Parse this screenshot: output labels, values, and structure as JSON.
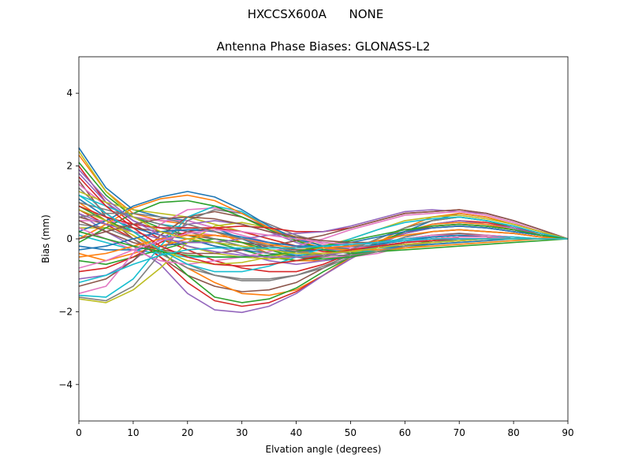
{
  "figure": {
    "suptitle": "HXCCSX600A      NONE"
  },
  "chart_data": {
    "type": "line",
    "title": "Antenna Phase Biases: GLONASS-L2",
    "xlabel": "Elvation angle (degrees)",
    "ylabel": "Bias (mm)",
    "xlim": [
      0,
      90
    ],
    "ylim": [
      -5,
      5
    ],
    "xticks": [
      0,
      10,
      20,
      30,
      40,
      50,
      60,
      70,
      80,
      90
    ],
    "yticks": [
      -4,
      -2,
      0,
      2,
      4
    ],
    "ytick_labels": [
      "−4",
      "−2",
      "0",
      "2",
      "4"
    ],
    "grid": false,
    "legend": "none",
    "x": [
      0,
      5,
      10,
      15,
      20,
      25,
      30,
      35,
      40,
      45,
      50,
      55,
      60,
      65,
      70,
      75,
      80,
      85,
      90
    ],
    "colors": [
      "#1f77b4",
      "#ff7f0e",
      "#2ca02c",
      "#d62728",
      "#9467bd",
      "#8c564b",
      "#e377c2",
      "#7f7f7f",
      "#bcbd22",
      "#17becf"
    ],
    "series": [
      {
        "values": [
          2.5,
          1.4,
          0.8,
          0.6,
          0.5,
          0.3,
          0.0,
          -0.3,
          -0.5,
          -0.6,
          -0.5,
          -0.2,
          0.2,
          0.5,
          0.7,
          0.6,
          0.4,
          0.2,
          0
        ]
      },
      {
        "values": [
          2.3,
          1.3,
          0.7,
          0.5,
          0.4,
          0.2,
          -0.1,
          -0.4,
          -0.6,
          -0.6,
          -0.4,
          -0.1,
          0.3,
          0.6,
          0.7,
          0.6,
          0.4,
          0.2,
          0
        ]
      },
      {
        "values": [
          2.1,
          1.2,
          0.6,
          0.3,
          0.1,
          -0.1,
          -0.3,
          -0.5,
          -0.6,
          -0.5,
          -0.3,
          0.0,
          0.3,
          0.5,
          0.6,
          0.5,
          0.3,
          0.15,
          0
        ]
      },
      {
        "values": [
          2.0,
          1.0,
          0.4,
          0.0,
          -0.3,
          -0.6,
          -0.8,
          -0.9,
          -0.9,
          -0.7,
          -0.4,
          -0.1,
          0.2,
          0.4,
          0.5,
          0.45,
          0.3,
          0.15,
          0
        ]
      },
      {
        "values": [
          1.8,
          1.0,
          0.5,
          0.2,
          0.0,
          -0.2,
          -0.4,
          -0.6,
          -0.7,
          -0.6,
          -0.4,
          -0.1,
          0.2,
          0.4,
          0.5,
          0.4,
          0.3,
          0.1,
          0
        ]
      },
      {
        "values": [
          1.6,
          0.6,
          0.0,
          -0.5,
          -1.0,
          -1.3,
          -1.45,
          -1.4,
          -1.2,
          -0.8,
          -0.4,
          -0.1,
          0.15,
          0.3,
          0.35,
          0.3,
          0.2,
          0.1,
          0
        ]
      },
      {
        "values": [
          1.5,
          0.9,
          0.6,
          0.5,
          0.5,
          0.3,
          0.1,
          -0.1,
          -0.3,
          -0.5,
          -0.5,
          -0.4,
          -0.2,
          -0.1,
          0.0,
          0.0,
          0.0,
          0.0,
          0
        ]
      },
      {
        "values": [
          1.4,
          0.7,
          0.2,
          -0.3,
          -0.7,
          -1.0,
          -1.15,
          -1.15,
          -1.0,
          -0.75,
          -0.45,
          -0.2,
          0.05,
          0.2,
          0.25,
          0.2,
          0.15,
          0.05,
          0
        ]
      },
      {
        "values": [
          1.3,
          1.0,
          0.8,
          0.7,
          0.6,
          0.4,
          0.2,
          0.0,
          -0.2,
          -0.3,
          -0.3,
          -0.2,
          -0.1,
          0.0,
          0.05,
          0.05,
          0.0,
          0.0,
          0
        ]
      },
      {
        "values": [
          1.2,
          0.9,
          0.6,
          0.4,
          0.3,
          0.2,
          0.0,
          -0.1,
          -0.3,
          -0.3,
          -0.3,
          -0.2,
          -0.1,
          0.0,
          0.05,
          0.05,
          0.0,
          0.0,
          0
        ]
      },
      {
        "values": [
          1.1,
          0.6,
          0.3,
          0.1,
          0.0,
          -0.2,
          -0.3,
          -0.4,
          -0.45,
          -0.4,
          -0.3,
          -0.2,
          -0.1,
          0.0,
          0.05,
          0.05,
          0.0,
          0.0,
          0
        ]
      },
      {
        "values": [
          1.0,
          0.5,
          0.1,
          -0.4,
          -0.8,
          -1.2,
          -1.5,
          -1.55,
          -1.4,
          -1.0,
          -0.5,
          -0.1,
          0.2,
          0.4,
          0.45,
          0.4,
          0.25,
          0.1,
          0
        ]
      },
      {
        "values": [
          0.9,
          0.5,
          0.2,
          -0.3,
          -1.0,
          -1.6,
          -1.75,
          -1.65,
          -1.35,
          -0.9,
          -0.5,
          -0.1,
          0.2,
          0.35,
          0.4,
          0.35,
          0.25,
          0.1,
          0
        ]
      },
      {
        "values": [
          0.8,
          0.4,
          0.0,
          -0.5,
          -1.2,
          -1.7,
          -1.85,
          -1.75,
          -1.45,
          -1.0,
          -0.55,
          -0.15,
          0.15,
          0.35,
          0.4,
          0.35,
          0.25,
          0.1,
          0
        ]
      },
      {
        "values": [
          0.7,
          0.2,
          -0.2,
          -0.7,
          -1.5,
          -1.95,
          -2.02,
          -1.85,
          -1.5,
          -1.0,
          -0.55,
          -0.15,
          0.15,
          0.3,
          0.35,
          0.3,
          0.2,
          0.1,
          0
        ]
      },
      {
        "values": [
          0.6,
          0.4,
          0.3,
          0.2,
          0.1,
          0.0,
          -0.1,
          -0.2,
          -0.3,
          -0.3,
          -0.2,
          -0.1,
          0.0,
          0.1,
          0.15,
          0.1,
          0.05,
          0.0,
          0
        ]
      },
      {
        "values": [
          0.5,
          0.5,
          0.4,
          0.3,
          0.2,
          0.1,
          0.0,
          -0.1,
          -0.2,
          -0.25,
          -0.2,
          -0.1,
          0.0,
          0.1,
          0.1,
          0.1,
          0.05,
          0.0,
          0
        ]
      },
      {
        "values": [
          0.4,
          0.3,
          0.0,
          -0.4,
          -0.8,
          -1.0,
          -1.1,
          -1.1,
          -1.0,
          -0.8,
          -0.5,
          -0.2,
          0.05,
          0.2,
          0.25,
          0.2,
          0.15,
          0.05,
          0
        ]
      },
      {
        "values": [
          0.3,
          0.3,
          0.2,
          0.0,
          -0.2,
          -0.4,
          -0.5,
          -0.55,
          -0.5,
          -0.4,
          -0.3,
          -0.2,
          -0.1,
          0.0,
          0.05,
          0.05,
          0.0,
          0.0,
          0
        ]
      },
      {
        "values": [
          0.1,
          -0.1,
          -0.3,
          -0.4,
          -0.5,
          -0.5,
          -0.5,
          -0.45,
          -0.4,
          -0.3,
          -0.2,
          -0.1,
          0.0,
          0.05,
          0.1,
          0.05,
          0.05,
          0.0,
          0
        ]
      },
      {
        "values": [
          -0.2,
          -0.3,
          -0.3,
          -0.2,
          -0.1,
          -0.1,
          -0.2,
          -0.3,
          -0.35,
          -0.3,
          -0.25,
          -0.15,
          -0.05,
          0.05,
          0.1,
          0.05,
          0.0,
          0.0,
          0
        ]
      },
      {
        "values": [
          -0.4,
          -0.6,
          -0.4,
          -0.2,
          0.0,
          0.1,
          0.0,
          -0.2,
          -0.35,
          -0.4,
          -0.35,
          -0.25,
          -0.1,
          0.0,
          0.05,
          0.05,
          0.0,
          0.0,
          0
        ]
      },
      {
        "values": [
          -0.6,
          -0.7,
          -0.5,
          -0.3,
          -0.1,
          0.0,
          -0.1,
          -0.3,
          -0.5,
          -0.55,
          -0.5,
          -0.35,
          -0.2,
          -0.05,
          0.05,
          0.05,
          0.0,
          0.0,
          0
        ]
      },
      {
        "values": [
          -0.9,
          -0.8,
          -0.5,
          -0.1,
          0.2,
          0.3,
          0.2,
          0.0,
          -0.2,
          -0.35,
          -0.35,
          -0.25,
          -0.1,
          0.0,
          0.05,
          0.05,
          0.0,
          0.0,
          0
        ]
      },
      {
        "values": [
          -1.1,
          -1.0,
          -0.6,
          0.0,
          0.4,
          0.5,
          0.4,
          0.2,
          -0.1,
          -0.3,
          -0.3,
          -0.2,
          -0.1,
          0.0,
          0.05,
          0.05,
          0.0,
          0.0,
          0
        ]
      },
      {
        "values": [
          -1.3,
          -1.1,
          -0.6,
          0.1,
          0.6,
          0.75,
          0.6,
          0.3,
          0.05,
          -0.2,
          -0.3,
          -0.25,
          -0.1,
          0.0,
          0.05,
          0.05,
          0.0,
          0.0,
          0
        ]
      },
      {
        "values": [
          -1.5,
          -1.3,
          -0.4,
          0.4,
          0.8,
          0.85,
          0.7,
          0.4,
          0.1,
          -0.15,
          -0.25,
          -0.2,
          -0.1,
          0.0,
          0.05,
          0.05,
          0.0,
          0.0,
          0
        ]
      },
      {
        "values": [
          -1.6,
          -1.7,
          -1.3,
          -0.4,
          0.5,
          0.8,
          0.7,
          0.4,
          0.1,
          -0.1,
          -0.2,
          -0.2,
          -0.15,
          -0.1,
          -0.05,
          0.0,
          0.0,
          0.0,
          0
        ]
      },
      {
        "values": [
          -1.65,
          -1.75,
          -1.4,
          -0.8,
          -0.1,
          0.35,
          0.45,
          0.3,
          0.05,
          -0.2,
          -0.35,
          -0.35,
          -0.25,
          -0.15,
          -0.1,
          -0.05,
          0.0,
          0.0,
          0
        ]
      },
      {
        "values": [
          -1.55,
          -1.6,
          -1.1,
          -0.2,
          0.6,
          0.9,
          0.75,
          0.3,
          0.0,
          -0.3,
          -0.4,
          -0.3,
          -0.2,
          -0.1,
          0.0,
          0.0,
          0.0,
          0.0,
          0
        ]
      },
      {
        "values": [
          0.2,
          0.5,
          0.9,
          1.15,
          1.3,
          1.15,
          0.8,
          0.35,
          0.0,
          -0.2,
          -0.3,
          -0.25,
          -0.2,
          -0.15,
          -0.1,
          -0.05,
          0.0,
          0.0,
          0
        ]
      },
      {
        "values": [
          0.0,
          0.4,
          0.85,
          1.1,
          1.2,
          1.05,
          0.7,
          0.3,
          -0.05,
          -0.25,
          -0.3,
          -0.3,
          -0.25,
          -0.2,
          -0.15,
          -0.1,
          -0.05,
          0.0,
          0
        ]
      },
      {
        "values": [
          -0.1,
          0.3,
          0.7,
          1.0,
          1.05,
          0.9,
          0.6,
          0.25,
          -0.05,
          -0.3,
          -0.4,
          -0.35,
          -0.3,
          -0.25,
          -0.2,
          -0.15,
          -0.1,
          -0.05,
          0
        ]
      },
      {
        "values": [
          0.9,
          0.6,
          0.4,
          0.3,
          0.3,
          0.3,
          0.35,
          0.3,
          0.2,
          0.2,
          0.3,
          0.5,
          0.7,
          0.75,
          0.8,
          0.7,
          0.5,
          0.25,
          0
        ]
      },
      {
        "values": [
          0.7,
          0.4,
          0.2,
          0.0,
          -0.1,
          -0.1,
          0.0,
          0.1,
          0.15,
          0.2,
          0.35,
          0.55,
          0.75,
          0.8,
          0.75,
          0.7,
          0.5,
          0.25,
          0
        ]
      },
      {
        "values": [
          0.5,
          0.2,
          -0.1,
          -0.3,
          -0.4,
          -0.4,
          -0.3,
          -0.2,
          -0.05,
          0.1,
          0.3,
          0.5,
          0.7,
          0.75,
          0.8,
          0.7,
          0.5,
          0.25,
          0
        ]
      },
      {
        "values": [
          0.3,
          0.0,
          -0.3,
          -0.6,
          -0.7,
          -0.6,
          -0.5,
          -0.35,
          -0.2,
          0.0,
          0.25,
          0.45,
          0.65,
          0.7,
          0.75,
          0.65,
          0.45,
          0.2,
          0
        ]
      },
      {
        "values": [
          1.0,
          0.8,
          0.6,
          0.4,
          0.2,
          0.0,
          -0.2,
          -0.4,
          -0.5,
          -0.5,
          -0.3,
          0.0,
          0.3,
          0.5,
          0.6,
          0.5,
          0.35,
          0.15,
          0
        ]
      },
      {
        "values": [
          0.8,
          0.5,
          0.1,
          -0.3,
          -0.6,
          -0.7,
          -0.65,
          -0.5,
          -0.35,
          -0.2,
          0.0,
          0.25,
          0.5,
          0.6,
          0.65,
          0.55,
          0.4,
          0.2,
          0
        ]
      },
      {
        "values": [
          1.2,
          0.7,
          0.2,
          -0.3,
          -0.7,
          -0.9,
          -0.9,
          -0.75,
          -0.5,
          -0.25,
          0.0,
          0.25,
          0.45,
          0.55,
          0.6,
          0.5,
          0.35,
          0.15,
          0
        ]
      },
      {
        "values": [
          -0.3,
          -0.2,
          0.0,
          0.2,
          0.25,
          0.2,
          0.05,
          -0.1,
          -0.2,
          -0.2,
          -0.1,
          0.05,
          0.2,
          0.3,
          0.35,
          0.3,
          0.2,
          0.1,
          0
        ]
      },
      {
        "values": [
          -0.5,
          -0.4,
          -0.2,
          0.0,
          0.1,
          0.1,
          0.0,
          -0.15,
          -0.25,
          -0.25,
          -0.2,
          -0.05,
          0.1,
          0.2,
          0.25,
          0.2,
          0.15,
          0.05,
          0
        ]
      },
      {
        "values": [
          0.2,
          0.0,
          -0.2,
          -0.35,
          -0.45,
          -0.5,
          -0.5,
          -0.45,
          -0.35,
          -0.2,
          -0.05,
          0.1,
          0.25,
          0.35,
          0.4,
          0.35,
          0.25,
          0.1,
          0
        ]
      },
      {
        "values": [
          1.7,
          0.9,
          0.3,
          -0.2,
          -0.5,
          -0.7,
          -0.75,
          -0.7,
          -0.6,
          -0.45,
          -0.3,
          -0.2,
          -0.1,
          -0.05,
          0.0,
          0.0,
          0.0,
          0.0,
          0
        ]
      },
      {
        "values": [
          1.9,
          1.1,
          0.5,
          0.1,
          -0.2,
          -0.35,
          -0.45,
          -0.5,
          -0.5,
          -0.45,
          -0.35,
          -0.25,
          -0.15,
          -0.1,
          -0.05,
          0.0,
          0.0,
          0.0,
          0
        ]
      },
      {
        "values": [
          0.0,
          0.2,
          0.4,
          0.55,
          0.6,
          0.55,
          0.4,
          0.2,
          0.05,
          -0.05,
          -0.1,
          -0.1,
          -0.05,
          0.0,
          0.0,
          0.0,
          0.0,
          0.0,
          0
        ]
      },
      {
        "values": [
          -0.8,
          -0.6,
          -0.3,
          -0.05,
          0.15,
          0.25,
          0.2,
          0.1,
          0.0,
          -0.1,
          -0.15,
          -0.1,
          -0.05,
          0.0,
          0.0,
          0.0,
          0.0,
          0.0,
          0
        ]
      },
      {
        "values": [
          0.6,
          0.7,
          0.7,
          0.6,
          0.4,
          0.2,
          0.0,
          -0.2,
          -0.35,
          -0.45,
          -0.45,
          -0.35,
          -0.2,
          -0.1,
          -0.05,
          0.0,
          0.0,
          0.0,
          0
        ]
      },
      {
        "values": [
          2.4,
          1.3,
          0.6,
          0.2,
          0.0,
          -0.1,
          -0.2,
          -0.3,
          -0.4,
          -0.4,
          -0.35,
          -0.25,
          -0.15,
          -0.1,
          -0.05,
          0.0,
          0.0,
          0.0,
          0
        ]
      },
      {
        "values": [
          -1.2,
          -1.0,
          -0.7,
          -0.45,
          -0.3,
          -0.25,
          -0.25,
          -0.25,
          -0.25,
          -0.2,
          -0.15,
          -0.1,
          -0.05,
          0.0,
          0.0,
          0.0,
          0.0,
          0.0,
          0
        ]
      }
    ]
  }
}
